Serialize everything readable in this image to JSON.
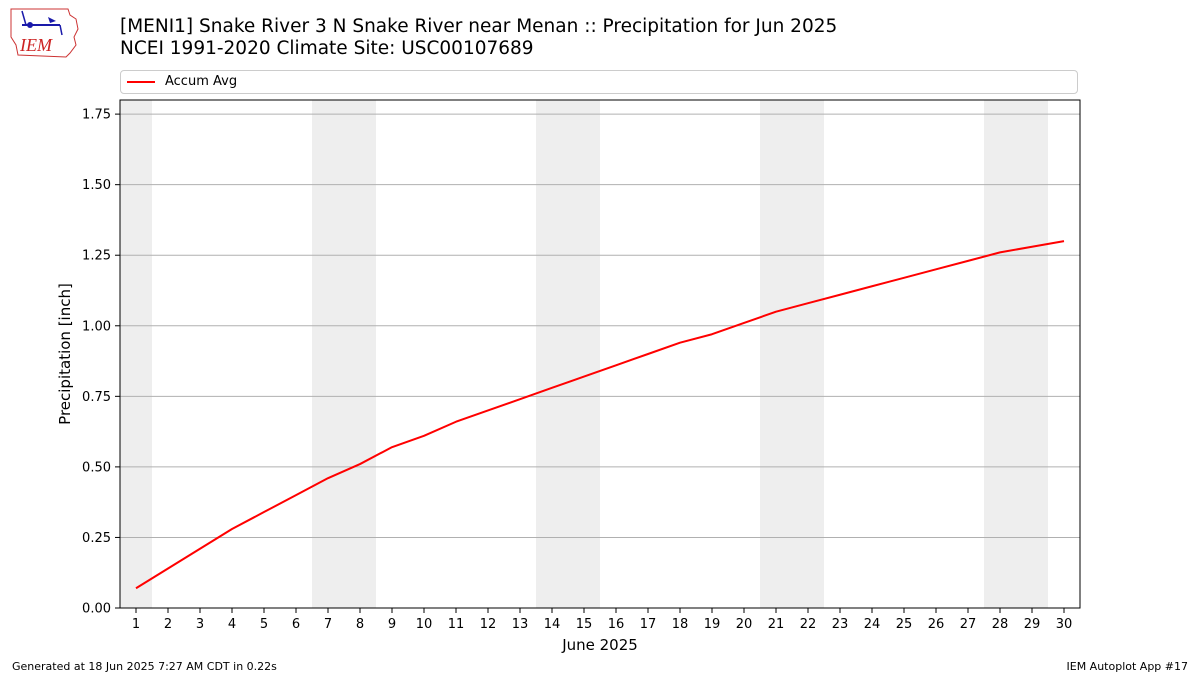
{
  "logo": {
    "text": "IEM"
  },
  "title": {
    "line1": "[MENI1] Snake River 3 N Snake River near Menan :: Precipitation for Jun 2025",
    "line2": "NCEI 1991-2020 Climate Site: USC00107689"
  },
  "footer": {
    "left": "Generated at 18 Jun 2025 7:27 AM CDT in 0.22s",
    "right": "IEM Autoplot App #17"
  },
  "chart_data": {
    "type": "line",
    "xlabel": "June 2025",
    "ylabel": "Precipitation [inch]",
    "x": [
      1,
      2,
      3,
      4,
      5,
      6,
      7,
      8,
      9,
      10,
      11,
      12,
      13,
      14,
      15,
      16,
      17,
      18,
      19,
      20,
      21,
      22,
      23,
      24,
      25,
      26,
      27,
      28,
      29,
      30
    ],
    "xlim": [
      0.5,
      30.5
    ],
    "ylim": [
      0,
      1.8
    ],
    "yticks": [
      0.0,
      0.25,
      0.5,
      0.75,
      1.0,
      1.25,
      1.5,
      1.75
    ],
    "ytick_labels": [
      "0.00",
      "0.25",
      "0.50",
      "0.75",
      "1.00",
      "1.25",
      "1.50",
      "1.75"
    ],
    "grid": "y",
    "legend": "top",
    "weekend_shading": [
      [
        0.5,
        1.5
      ],
      [
        6.5,
        8.5
      ],
      [
        13.5,
        15.5
      ],
      [
        20.5,
        22.5
      ],
      [
        27.5,
        29.5
      ]
    ],
    "shade_color": "#eeeeee",
    "series": [
      {
        "name": "Accum Avg",
        "color": "#ff0000",
        "values": [
          0.07,
          0.14,
          0.21,
          0.28,
          0.34,
          0.4,
          0.46,
          0.51,
          0.57,
          0.61,
          0.66,
          0.7,
          0.74,
          0.78,
          0.82,
          0.86,
          0.9,
          0.94,
          0.97,
          1.01,
          1.05,
          1.08,
          1.11,
          1.14,
          1.17,
          1.2,
          1.23,
          1.26,
          1.28,
          1.3
        ]
      }
    ]
  }
}
